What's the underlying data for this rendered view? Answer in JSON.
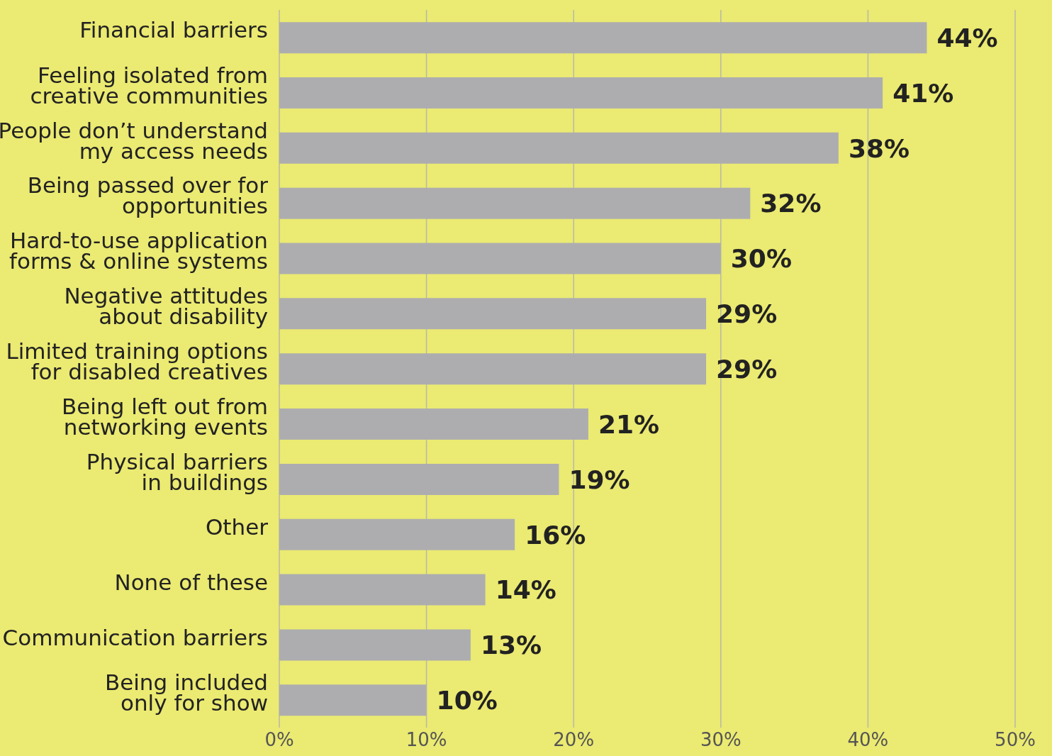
{
  "chart_data": {
    "type": "bar",
    "orientation": "horizontal",
    "categories": [
      "Financial barriers",
      "Feeling isolated from\ncreative communities",
      "People don’t understand\nmy access needs",
      "Being passed over for\nopportunities",
      "Hard-to-use application\nforms & online systems",
      "Negative attitudes\nabout disability",
      "Limited training options\nfor disabled creatives",
      "Being left out from\nnetworking events",
      "Physical barriers\nin buildings",
      "Other",
      "None of these",
      "Communication barriers",
      "Being included\nonly for show"
    ],
    "values": [
      44,
      41,
      38,
      32,
      30,
      29,
      29,
      21,
      19,
      16,
      14,
      13,
      10
    ],
    "value_labels": [
      "44%",
      "41%",
      "38%",
      "32%",
      "30%",
      "29%",
      "29%",
      "21%",
      "19%",
      "16%",
      "14%",
      "13%",
      "10%"
    ],
    "color": "#adadb0",
    "xlim": [
      0,
      50
    ],
    "xticks": [
      {
        "value": 0,
        "label": "0%"
      },
      {
        "value": 10,
        "label": "10%"
      },
      {
        "value": 20,
        "label": "20%"
      },
      {
        "value": 30,
        "label": "30%"
      },
      {
        "value": 40,
        "label": "40%"
      },
      {
        "value": 50,
        "label": "50%"
      }
    ],
    "grid": "x"
  }
}
